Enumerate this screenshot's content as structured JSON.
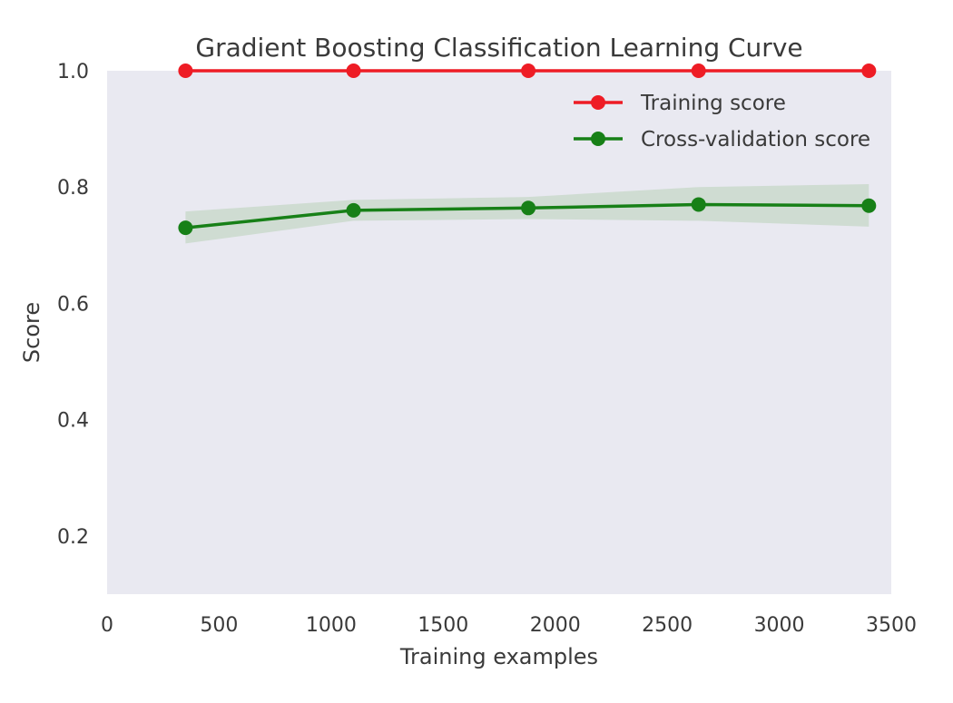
{
  "chart_data": {
    "type": "line",
    "title": "Gradient Boosting Classification Learning Curve",
    "xlabel": "Training examples",
    "ylabel": "Score",
    "xlim": [
      0,
      3500
    ],
    "ylim": [
      0.1,
      1.0
    ],
    "xticks": [
      "0",
      "500",
      "1000",
      "1500",
      "2000",
      "2500",
      "3000",
      "3500"
    ],
    "yticks": [
      "0.2",
      "0.4",
      "0.6",
      "0.8",
      "1.0"
    ],
    "grid": false,
    "legend_position": "top-right",
    "x": [
      350,
      1100,
      1880,
      2640,
      3400
    ],
    "series": [
      {
        "name": "Training score",
        "color": "#ee1c25",
        "values": [
          1.0,
          1.0,
          1.0,
          1.0,
          1.0
        ],
        "band_lower": [
          1.0,
          1.0,
          1.0,
          1.0,
          1.0
        ],
        "band_upper": [
          1.0,
          1.0,
          1.0,
          1.0,
          1.0
        ]
      },
      {
        "name": "Cross-validation score",
        "color": "#178017",
        "values": [
          0.73,
          0.76,
          0.764,
          0.77,
          0.768
        ],
        "band_lower": [
          0.703,
          0.742,
          0.745,
          0.742,
          0.732
        ],
        "band_upper": [
          0.758,
          0.778,
          0.783,
          0.8,
          0.805
        ]
      }
    ],
    "band_color": "#cfdcd2",
    "plot_background": "#e9e9f1"
  }
}
